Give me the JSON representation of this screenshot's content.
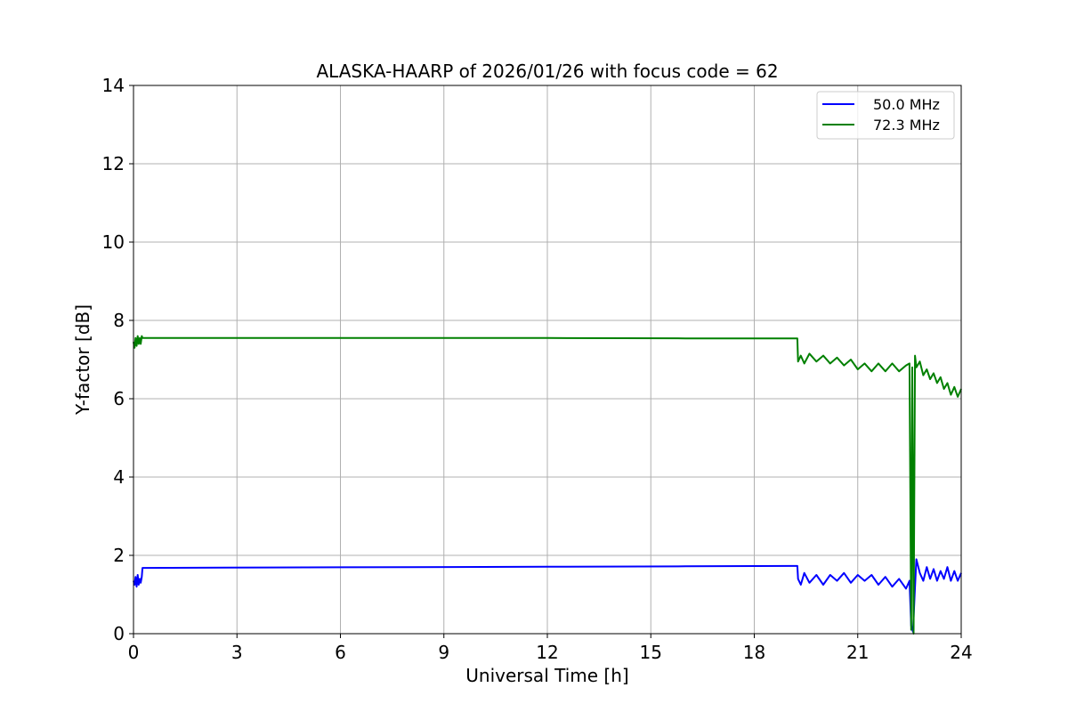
{
  "chart_data": {
    "type": "line",
    "title": "ALASKA-HAARP of 2026/01/26 with focus code = 62",
    "xlabel": "Universal Time [h]",
    "ylabel": "Y-factor [dB]",
    "xlim": [
      0,
      24
    ],
    "ylim": [
      0,
      14
    ],
    "xticks": [
      0,
      3,
      6,
      9,
      12,
      15,
      18,
      21,
      24
    ],
    "yticks": [
      0,
      2,
      4,
      6,
      8,
      10,
      12,
      14
    ],
    "grid": true,
    "legend_position": "top-right",
    "series": [
      {
        "name": "50.0 MHz",
        "color": "#0000ff",
        "points": [
          [
            0.0,
            1.35
          ],
          [
            0.03,
            1.25
          ],
          [
            0.06,
            1.45
          ],
          [
            0.09,
            1.2
          ],
          [
            0.12,
            1.5
          ],
          [
            0.15,
            1.25
          ],
          [
            0.18,
            1.4
          ],
          [
            0.21,
            1.3
          ],
          [
            0.24,
            1.45
          ],
          [
            0.26,
            1.68
          ],
          [
            4.0,
            1.69
          ],
          [
            8.0,
            1.7
          ],
          [
            12.0,
            1.71
          ],
          [
            16.0,
            1.72
          ],
          [
            19.25,
            1.73
          ],
          [
            19.27,
            1.4
          ],
          [
            19.35,
            1.25
          ],
          [
            19.45,
            1.55
          ],
          [
            19.6,
            1.3
          ],
          [
            19.8,
            1.5
          ],
          [
            20.0,
            1.25
          ],
          [
            20.2,
            1.5
          ],
          [
            20.4,
            1.35
          ],
          [
            20.6,
            1.55
          ],
          [
            20.8,
            1.3
          ],
          [
            21.0,
            1.5
          ],
          [
            21.2,
            1.35
          ],
          [
            21.4,
            1.5
          ],
          [
            21.6,
            1.25
          ],
          [
            21.8,
            1.45
          ],
          [
            22.0,
            1.2
          ],
          [
            22.2,
            1.4
          ],
          [
            22.4,
            1.15
          ],
          [
            22.5,
            1.35
          ],
          [
            22.55,
            0.2
          ],
          [
            22.6,
            0.05
          ],
          [
            22.65,
            1.0
          ],
          [
            22.7,
            1.9
          ],
          [
            22.8,
            1.55
          ],
          [
            22.9,
            1.35
          ],
          [
            23.0,
            1.7
          ],
          [
            23.1,
            1.4
          ],
          [
            23.2,
            1.65
          ],
          [
            23.3,
            1.35
          ],
          [
            23.4,
            1.6
          ],
          [
            23.5,
            1.4
          ],
          [
            23.6,
            1.7
          ],
          [
            23.7,
            1.35
          ],
          [
            23.8,
            1.6
          ],
          [
            23.9,
            1.35
          ],
          [
            24.0,
            1.55
          ]
        ]
      },
      {
        "name": "72.3 MHz",
        "color": "#008000",
        "points": [
          [
            0.0,
            7.45
          ],
          [
            0.03,
            7.3
          ],
          [
            0.06,
            7.55
          ],
          [
            0.09,
            7.35
          ],
          [
            0.12,
            7.6
          ],
          [
            0.15,
            7.4
          ],
          [
            0.18,
            7.55
          ],
          [
            0.21,
            7.4
          ],
          [
            0.24,
            7.6
          ],
          [
            0.26,
            7.55
          ],
          [
            4.0,
            7.55
          ],
          [
            8.0,
            7.55
          ],
          [
            12.0,
            7.55
          ],
          [
            16.0,
            7.54
          ],
          [
            19.25,
            7.54
          ],
          [
            19.27,
            6.95
          ],
          [
            19.35,
            7.1
          ],
          [
            19.45,
            6.9
          ],
          [
            19.6,
            7.15
          ],
          [
            19.8,
            6.95
          ],
          [
            20.0,
            7.1
          ],
          [
            20.2,
            6.9
          ],
          [
            20.4,
            7.05
          ],
          [
            20.6,
            6.85
          ],
          [
            20.8,
            7.0
          ],
          [
            21.0,
            6.75
          ],
          [
            21.2,
            6.9
          ],
          [
            21.4,
            6.7
          ],
          [
            21.6,
            6.9
          ],
          [
            21.8,
            6.7
          ],
          [
            22.0,
            6.9
          ],
          [
            22.2,
            6.7
          ],
          [
            22.4,
            6.85
          ],
          [
            22.5,
            6.9
          ],
          [
            22.55,
            0.1
          ],
          [
            22.58,
            6.8
          ],
          [
            22.62,
            0.0
          ],
          [
            22.66,
            7.1
          ],
          [
            22.7,
            6.8
          ],
          [
            22.8,
            6.95
          ],
          [
            22.9,
            6.6
          ],
          [
            23.0,
            6.75
          ],
          [
            23.1,
            6.5
          ],
          [
            23.2,
            6.65
          ],
          [
            23.3,
            6.4
          ],
          [
            23.4,
            6.55
          ],
          [
            23.5,
            6.25
          ],
          [
            23.6,
            6.4
          ],
          [
            23.7,
            6.1
          ],
          [
            23.8,
            6.3
          ],
          [
            23.9,
            6.05
          ],
          [
            24.0,
            6.25
          ]
        ]
      }
    ]
  }
}
